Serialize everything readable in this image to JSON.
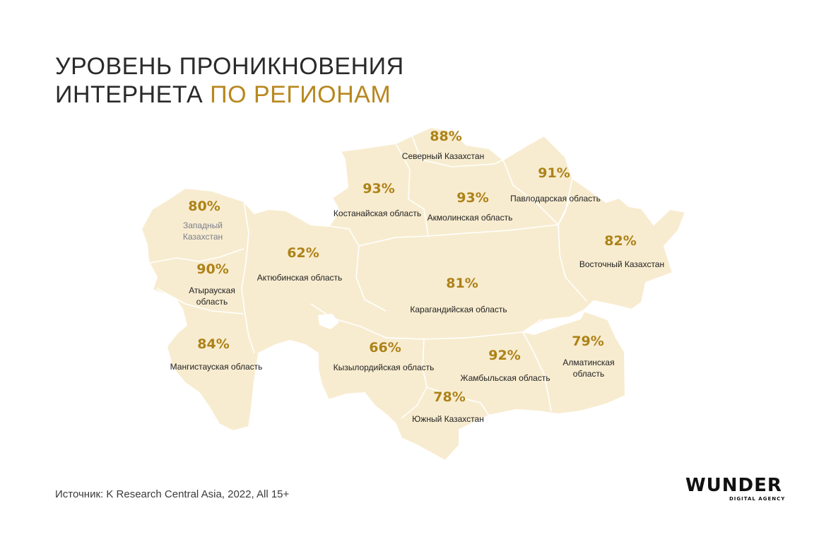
{
  "title": {
    "line1": "УРОВЕНЬ ПРОНИКНОВЕНИЯ",
    "line2_plain": "ИНТЕРНЕТА ",
    "line2_accent": "ПО РЕГИОНАМ"
  },
  "colors": {
    "map_fill": "#f8ecd0",
    "map_border": "#ffffff",
    "accent": "#ad8218"
  },
  "regions": [
    {
      "value": "88%",
      "label": "Северный Казахстан"
    },
    {
      "value": "91%",
      "label": "Павлодарская область"
    },
    {
      "value": "93%",
      "label": "Костанайская область"
    },
    {
      "value": "93%",
      "label": "Акмолинская область"
    },
    {
      "value": "80%",
      "label_line1": "Западный",
      "label_line2": "Казахстан"
    },
    {
      "value": "82%",
      "label": "Восточный Казахстан"
    },
    {
      "value": "62%",
      "label": "Актюбинская область"
    },
    {
      "value": "90%",
      "label_line1": "Атырауская",
      "label_line2": "область"
    },
    {
      "value": "81%",
      "label": "Карагандийская область"
    },
    {
      "value": "84%",
      "label": "Мангистауская область"
    },
    {
      "value": "66%",
      "label": "Кызылордийская область"
    },
    {
      "value": "92%",
      "label": "Жамбыльская область"
    },
    {
      "value": "79%",
      "label_line1": "Алматинская",
      "label_line2": "область"
    },
    {
      "value": "78%",
      "label": "Южный Казахстан"
    }
  ],
  "source": "Источник: K Research Central Asia, 2022, All 15+",
  "logo": {
    "main": "WUNDER",
    "sub": "DIGITAL AGENCY"
  }
}
